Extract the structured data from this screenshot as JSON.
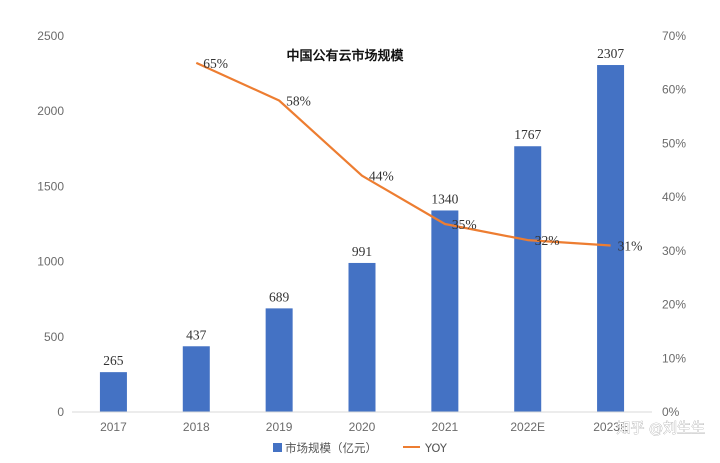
{
  "chart_data": {
    "type": "bar",
    "title": "中国公有云市场规模",
    "categories": [
      "2017",
      "2018",
      "2019",
      "2020",
      "2021",
      "2022E",
      "2023E"
    ],
    "series": [
      {
        "name": "市场规模（亿元）",
        "type": "bar",
        "axis": "left",
        "values": [
          265,
          437,
          689,
          991,
          1340,
          1767,
          2307
        ],
        "labels": [
          "265",
          "437",
          "689",
          "991",
          "1340",
          "1767",
          "2307"
        ]
      },
      {
        "name": "YOY",
        "type": "line",
        "axis": "right",
        "values": [
          null,
          65,
          58,
          44,
          35,
          32,
          31
        ],
        "labels": [
          null,
          "65%",
          "58%",
          "44%",
          "35%",
          "32%",
          "31%"
        ]
      }
    ],
    "y_left": {
      "min": 0,
      "max": 2500,
      "ticks": [
        "0",
        "500",
        "1000",
        "1500",
        "2000",
        "2500"
      ]
    },
    "y_right": {
      "min": 0,
      "max": 70,
      "ticks": [
        "0%",
        "10%",
        "20%",
        "30%",
        "40%",
        "50%",
        "60%",
        "70%"
      ]
    },
    "colors": {
      "bar": "#4472C4",
      "line": "#ED7D31"
    },
    "grid": false,
    "legend_position": "bottom"
  },
  "watermark": "知乎 @刘生生"
}
